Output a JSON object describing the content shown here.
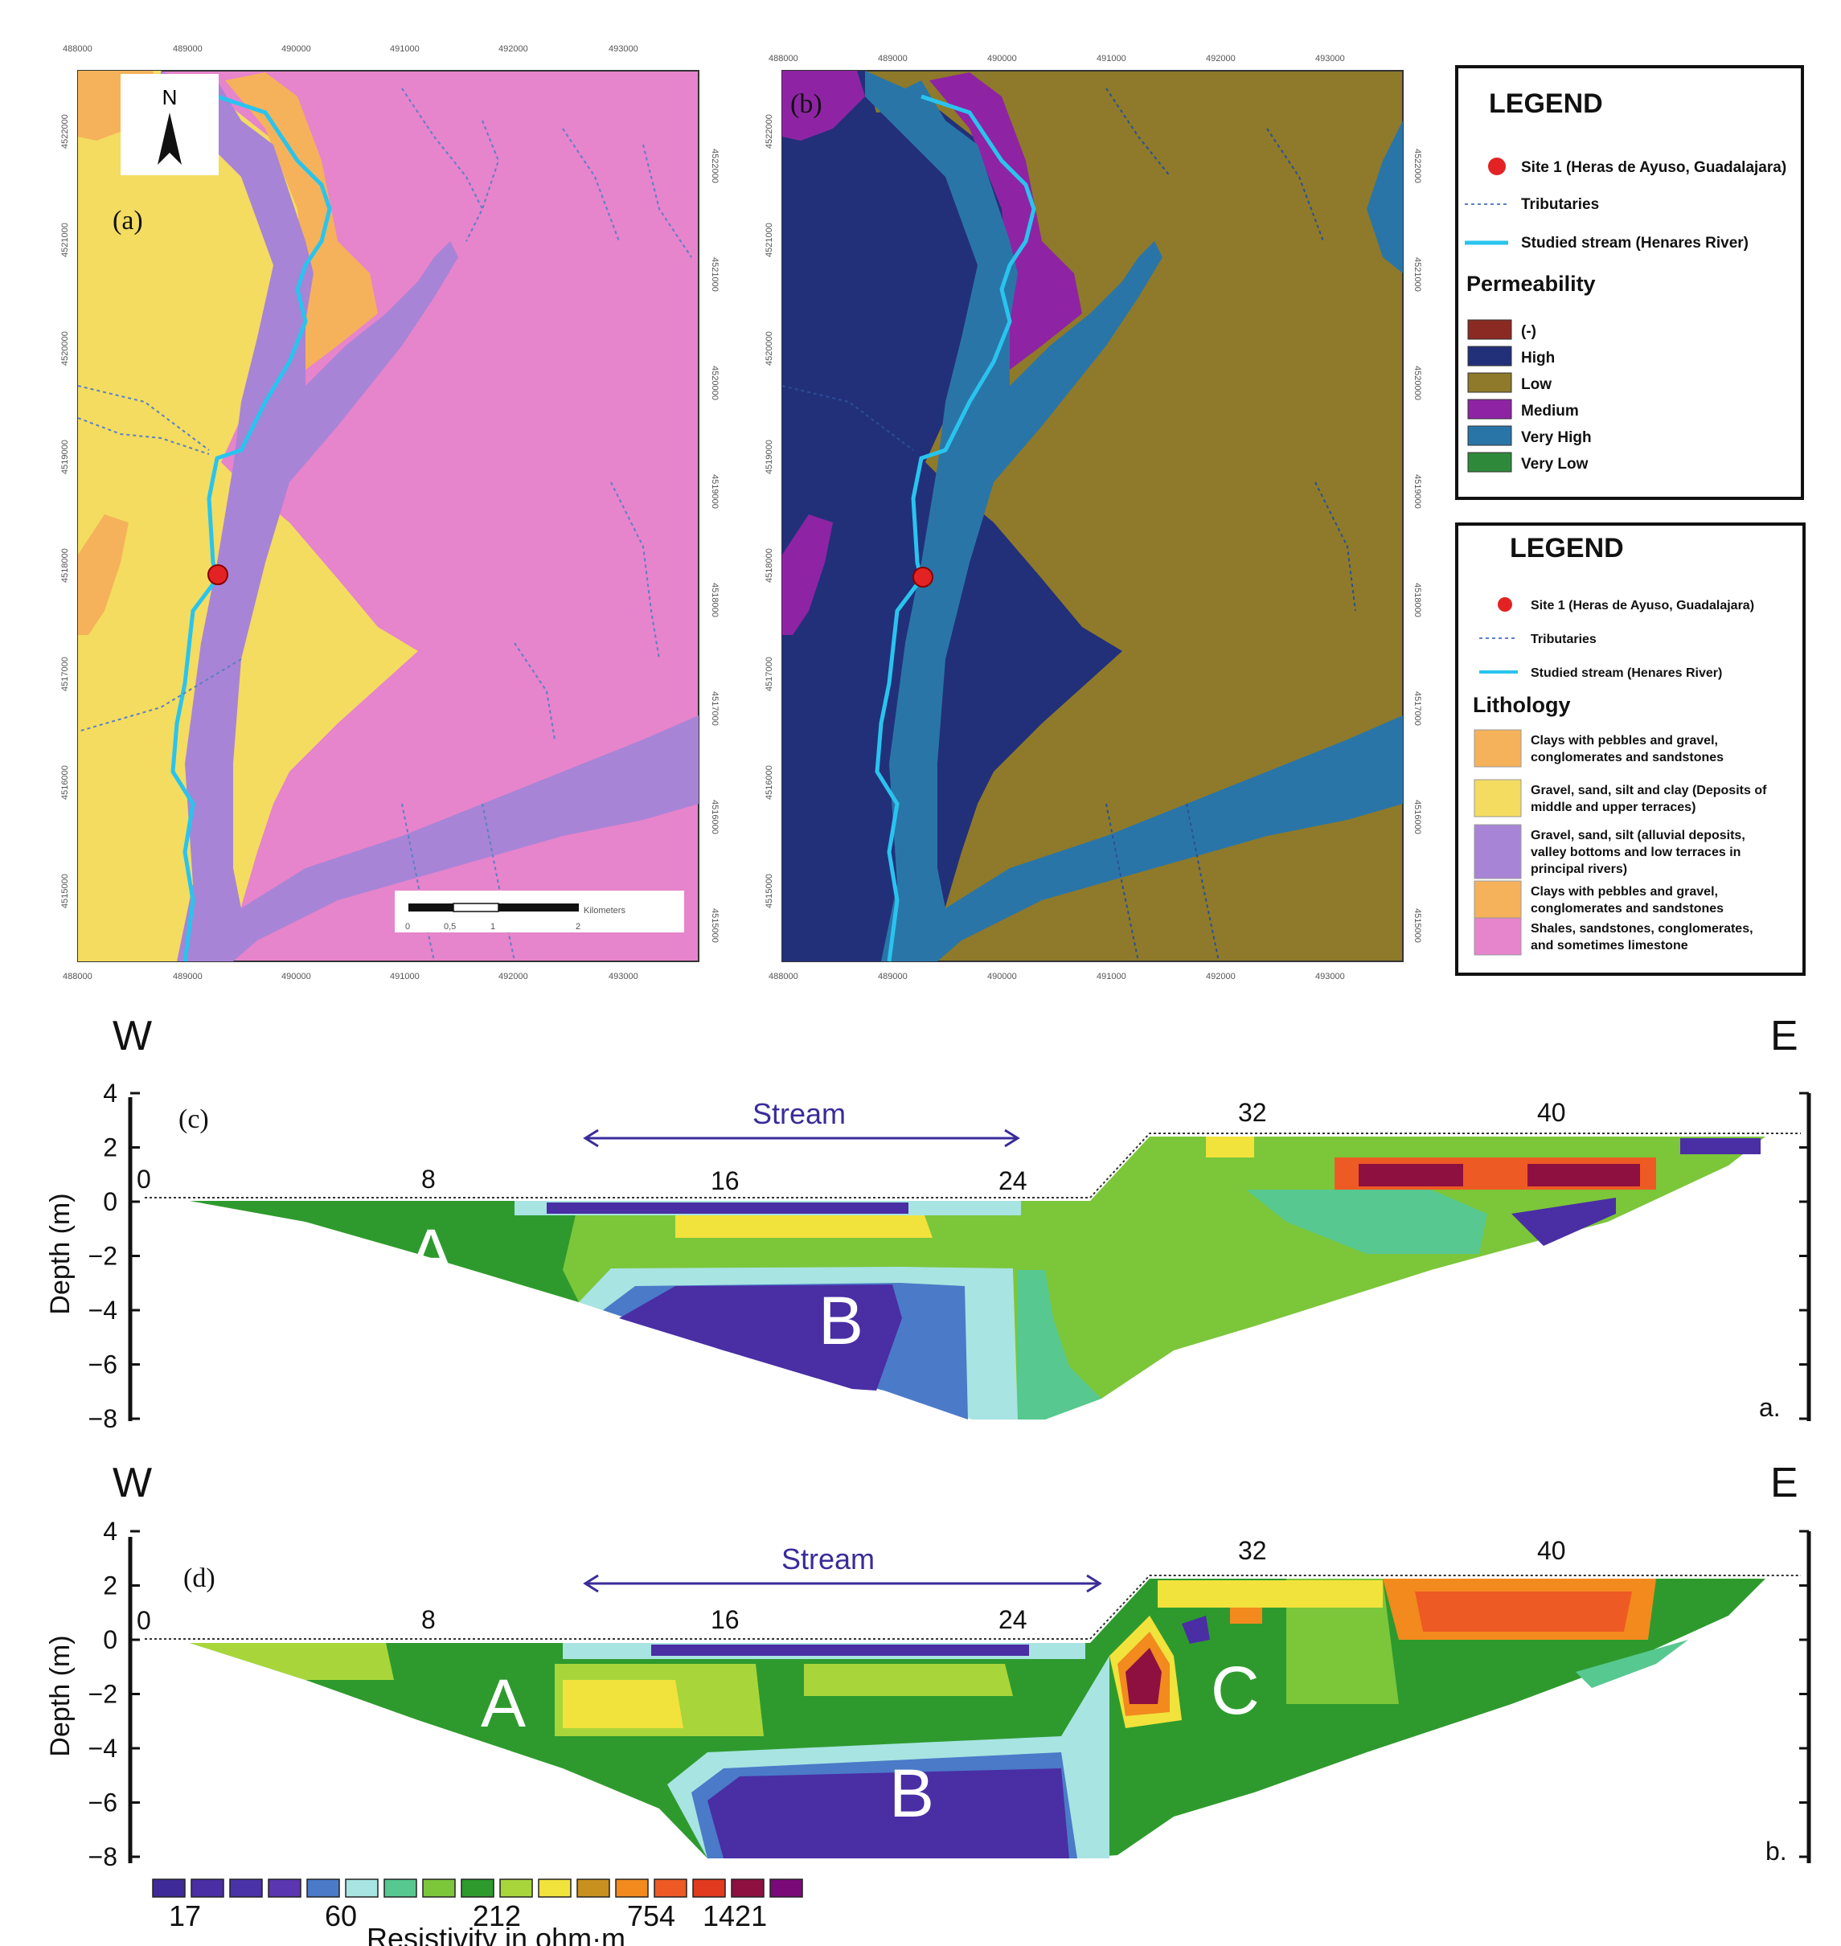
{
  "map_a": {
    "label": "(a)",
    "north_label": "N",
    "x_ticks": [
      "488000",
      "489000",
      "490000",
      "491000",
      "492000",
      "493000"
    ],
    "y_ticks": [
      "4522000",
      "4521000",
      "4520000",
      "4519000",
      "4518000",
      "4517000",
      "4516000",
      "4515000"
    ],
    "scalebar": {
      "ticks": [
        "0",
        "0,5",
        "1",
        "2"
      ],
      "unit": "Kilometers"
    }
  },
  "map_b": {
    "label": "(b)"
  },
  "legend_permeability": {
    "title": "LEGEND",
    "site": "Site 1 (Heras de Ayuso, Guadalajara)",
    "tributaries": "Tributaries",
    "stream": "Studied stream (Henares River)",
    "section_title": "Permeability",
    "items": [
      {
        "label": "(-)",
        "color": "#8b2a22"
      },
      {
        "label": "High",
        "color": "#22307a"
      },
      {
        "label": "Low",
        "color": "#8e7a2a"
      },
      {
        "label": "Medium",
        "color": "#8e24a4"
      },
      {
        "label": "Very High",
        "color": "#2a75a8"
      },
      {
        "label": "Very Low",
        "color": "#2e8a3a"
      }
    ]
  },
  "legend_lithology": {
    "title": "LEGEND",
    "site": "Site 1 (Heras de Ayuso, Guadalajara)",
    "tributaries": "Tributaries",
    "stream": "Studied stream (Henares River)",
    "section_title": "Lithology",
    "items": [
      {
        "lines": [
          "Clays with pebbles and gravel,",
          "conglomerates and sandstones"
        ],
        "color": "#f5b25a"
      },
      {
        "lines": [
          "Gravel, sand, silt and clay (Deposits of",
          "middle and upper terraces)"
        ],
        "color": "#f3dc60"
      },
      {
        "lines": [
          "Gravel, sand, silt (alluvial deposits,",
          "valley bottoms and low terraces in",
          "principal rivers)"
        ],
        "color": "#a884d6"
      },
      {
        "lines": [
          "Clays with pebbles and gravel,",
          "conglomerates and sandstones"
        ],
        "color": "#f5b25a"
      },
      {
        "lines": [
          "Shales, sandstones, conglomerates,",
          "and sometimes limestone"
        ],
        "color": "#e684cc"
      }
    ]
  },
  "profile_c": {
    "label": "(c)",
    "west": "W",
    "east": "E",
    "panel_tag": "a.",
    "stream_label": "Stream",
    "x_ticks": [
      "0",
      "8",
      "16",
      "24",
      "32",
      "40"
    ],
    "y_ticks": [
      "4",
      "2",
      "0",
      "−2",
      "−4",
      "−6",
      "−8"
    ],
    "y_label": "Depth (m)",
    "zones": [
      "A",
      "B"
    ]
  },
  "profile_d": {
    "label": "(d)",
    "west": "W",
    "east": "E",
    "panel_tag": "b.",
    "stream_label": "Stream",
    "x_ticks": [
      "0",
      "8",
      "16",
      "24",
      "32",
      "40"
    ],
    "y_ticks": [
      "4",
      "2",
      "0",
      "−2",
      "−4",
      "−6",
      "−8"
    ],
    "y_label": "Depth (m)",
    "zones": [
      "A",
      "B",
      "C"
    ]
  },
  "resistivity_scale": {
    "title": "Resistivity in ohm·m",
    "labels": [
      "17",
      "60",
      "212",
      "754",
      "1421"
    ],
    "colors": [
      "#3f2a9a",
      "#4a2ea4",
      "#4a32a8",
      "#5a36b0",
      "#4a7ac8",
      "#a8e4e2",
      "#56c890",
      "#7cc63a",
      "#2e9a2e",
      "#a8d63a",
      "#f2e23c",
      "#c8901e",
      "#f28a1e",
      "#ee5a24",
      "#e23a1e",
      "#8e1040",
      "#7a0a78"
    ]
  }
}
